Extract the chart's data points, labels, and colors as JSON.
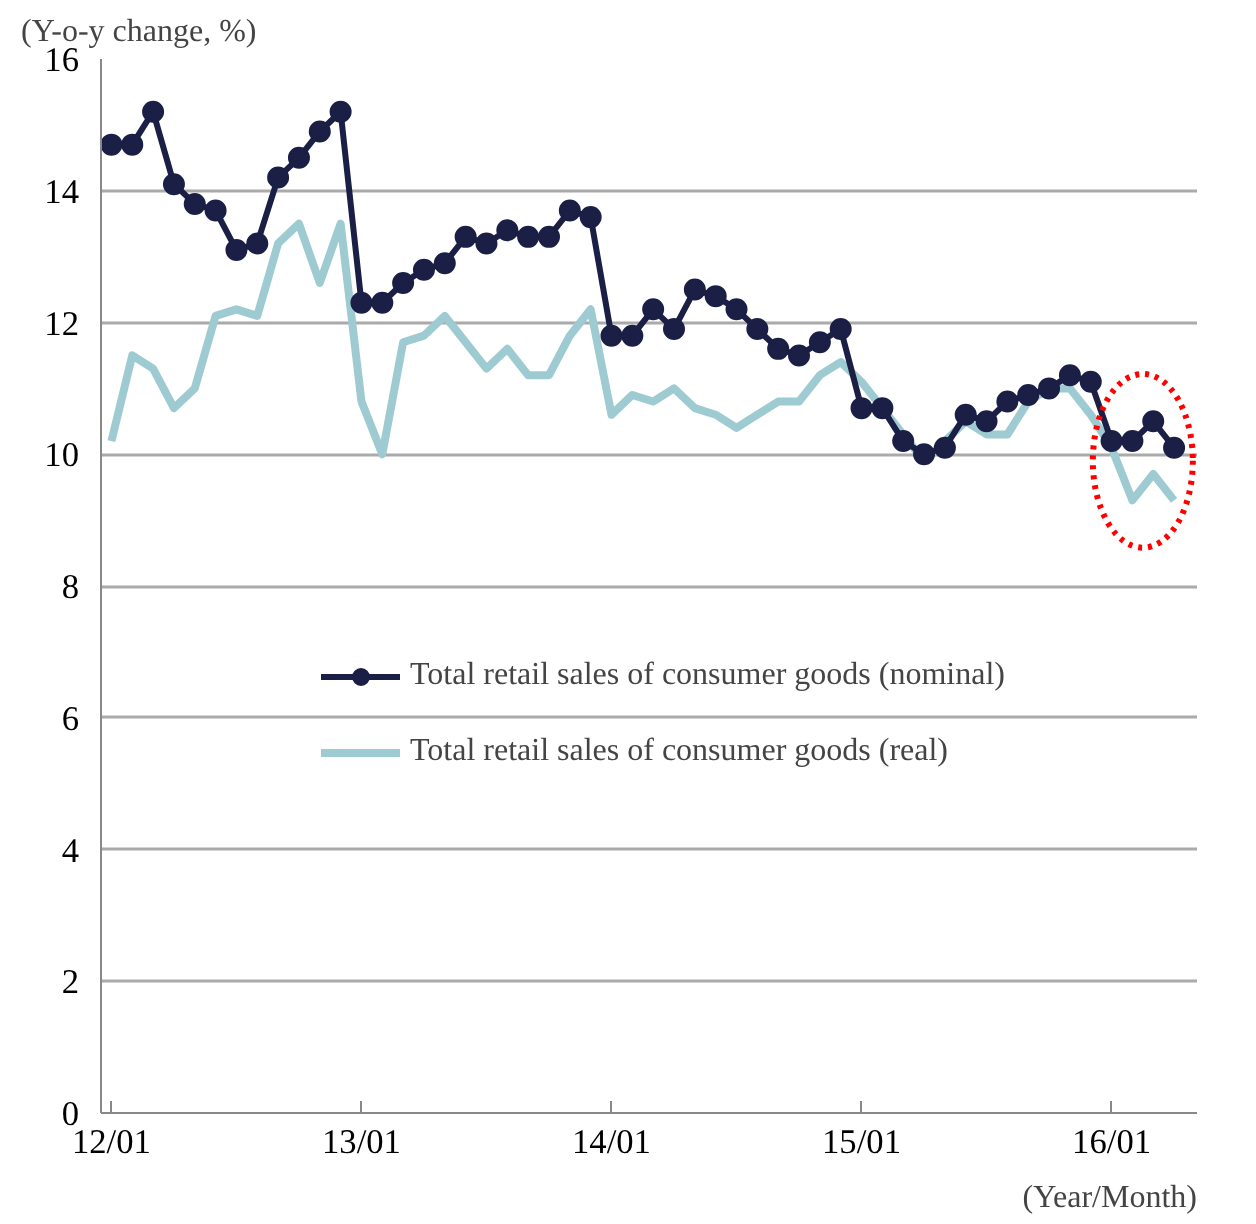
{
  "chart_data": {
    "type": "line",
    "ylabel": "(Y-o-y change, %)",
    "xlabel": "(Year/Month)",
    "categories": [
      "12/01",
      null,
      null,
      null,
      null,
      null,
      null,
      null,
      null,
      null,
      null,
      null,
      "13/01",
      null,
      null,
      null,
      null,
      null,
      null,
      null,
      null,
      null,
      null,
      null,
      "14/01",
      null,
      null,
      null,
      null,
      null,
      null,
      null,
      null,
      null,
      null,
      null,
      "15/01",
      null,
      null,
      null,
      null,
      null,
      null,
      null,
      null,
      null,
      null,
      null,
      "16/01",
      null,
      null,
      null
    ],
    "series": [
      {
        "name": "Total retail sales of consumer goods (nominal)",
        "color": "#1b1f45",
        "marker": "circle",
        "values": [
          14.7,
          14.7,
          15.2,
          14.1,
          13.8,
          13.7,
          13.1,
          13.2,
          14.2,
          14.5,
          14.9,
          15.2,
          12.3,
          12.3,
          12.6,
          12.8,
          12.9,
          13.3,
          13.2,
          13.4,
          13.3,
          13.3,
          13.7,
          13.6,
          11.8,
          11.8,
          12.2,
          11.9,
          12.5,
          12.4,
          12.2,
          11.9,
          11.6,
          11.5,
          11.7,
          11.9,
          10.7,
          10.7,
          10.2,
          10.0,
          10.1,
          10.6,
          10.5,
          10.8,
          10.9,
          11.0,
          11.2,
          11.1,
          10.2,
          10.2,
          10.5,
          10.1
        ]
      },
      {
        "name": "Total retail sales of consumer goods (real)",
        "color": "#9ecbd2",
        "marker": "none",
        "values": [
          10.2,
          11.5,
          11.3,
          10.7,
          11.0,
          12.1,
          12.2,
          12.1,
          13.2,
          13.5,
          12.6,
          13.5,
          10.8,
          10.0,
          11.7,
          11.8,
          12.1,
          11.7,
          11.3,
          11.6,
          11.2,
          11.2,
          11.8,
          12.2,
          10.6,
          10.9,
          10.8,
          11.0,
          10.7,
          10.6,
          10.4,
          10.6,
          10.8,
          10.8,
          11.2,
          11.4,
          11.1,
          10.7,
          10.3,
          9.9,
          10.2,
          10.5,
          10.3,
          10.3,
          10.8,
          11.0,
          11.0,
          10.6,
          10.1,
          9.3,
          9.7,
          9.3
        ]
      }
    ],
    "ylim": [
      0,
      16
    ],
    "yticks": [
      0,
      2,
      4,
      6,
      8,
      10,
      12,
      14,
      16
    ],
    "grid": "y",
    "legend": "right",
    "line_style": "solid"
  }
}
